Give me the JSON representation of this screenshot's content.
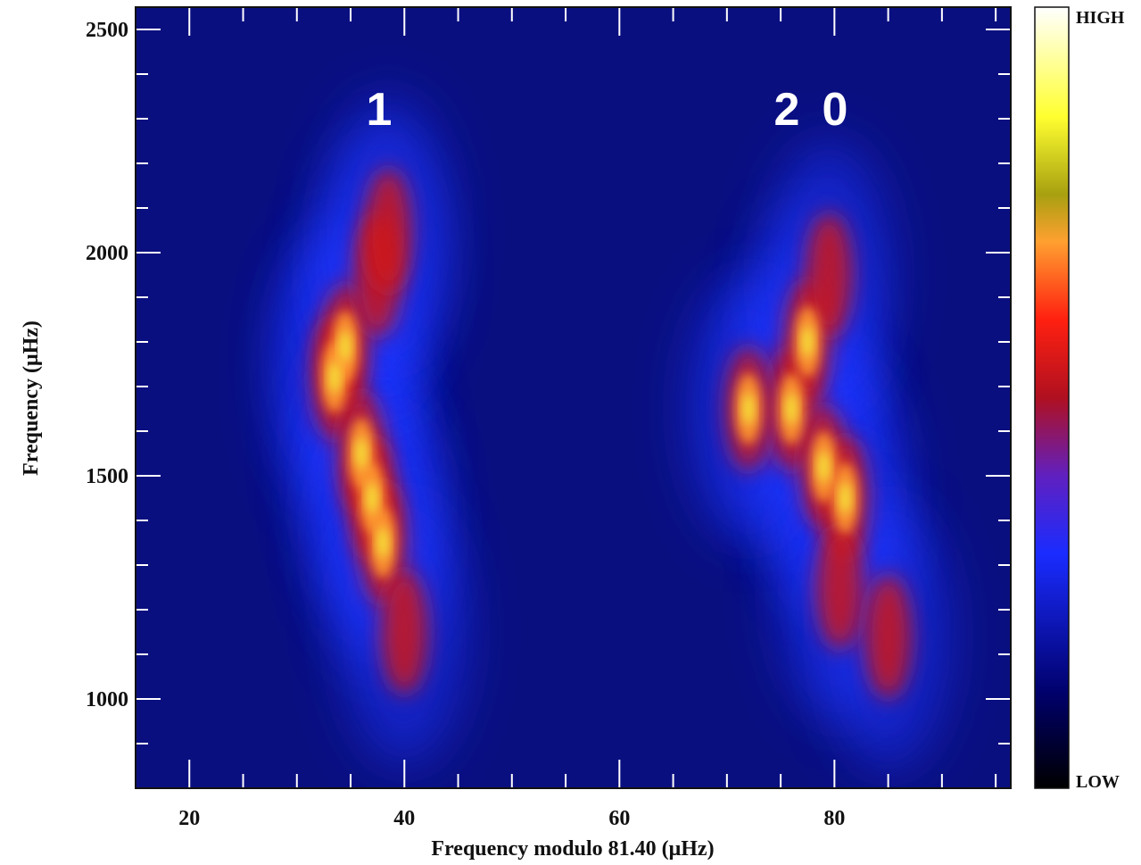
{
  "chart_data": {
    "type": "echelle",
    "xlabel": "Frequency modulo 81.40 (μHz)",
    "ylabel": "Frequency (μHz)",
    "annotations": [
      "1",
      "2",
      "0"
    ],
    "colorbar_labels": [
      "HIGH",
      "LOW"
    ],
    "xlim": [
      15,
      96.4
    ],
    "ylim": [
      800,
      2550
    ],
    "xticks": [
      20,
      40,
      60,
      80
    ],
    "xminorticks": [
      25,
      30,
      35,
      45,
      50,
      55,
      65,
      70,
      75,
      85,
      90,
      95
    ],
    "yticks": [
      1000,
      1500,
      2000,
      2500
    ],
    "yminorticks": [
      900,
      1100,
      1200,
      1300,
      1400,
      1600,
      1700,
      1800,
      1900,
      2100,
      2200,
      2300,
      2400
    ],
    "series": [
      {
        "x": [
          33.5,
          34.5,
          36,
          37,
          38,
          37.5,
          38.5,
          40
        ],
        "values": [
          1720,
          1790,
          1550,
          1450,
          1350,
          1950,
          2050,
          1150
        ]
      },
      {
        "x": [
          76,
          77.5,
          79,
          81,
          80.5,
          72,
          79.5,
          85
        ],
        "values": [
          1650,
          1800,
          1520,
          1450,
          1250,
          1650,
          1950,
          1140
        ]
      }
    ]
  }
}
